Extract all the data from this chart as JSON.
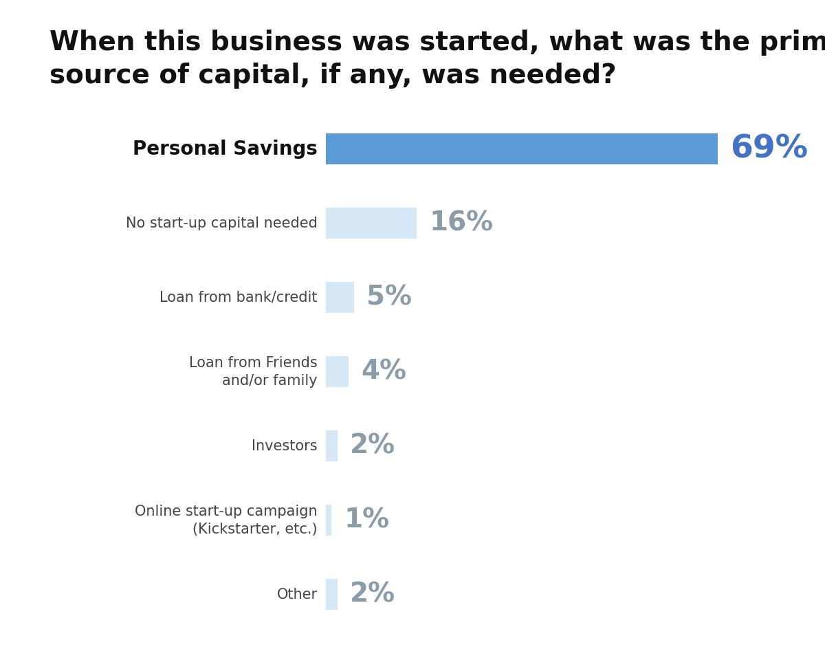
{
  "title_line1": "When this business was started, what was the primary",
  "title_line2": "source of capital, if any, was needed?",
  "categories": [
    "Personal Savings",
    "No start-up capital needed",
    "Loan from bank/credit",
    "Loan from Friends\nand/or family",
    "Investors",
    "Online start-up campaign\n(Kickstarter, etc.)",
    "Other"
  ],
  "values": [
    69,
    16,
    5,
    4,
    2,
    1,
    2
  ],
  "bar_color_primary": "#5B9BD5",
  "bar_color_light": "#D6E8F5",
  "pct_color_primary": "#4472C4",
  "pct_color_light": "#8C9BA8",
  "label_color_primary": "#111111",
  "label_color_secondary": "#444444",
  "background_color": "#FFFFFF",
  "title_fontsize": 28,
  "label_fontsize_primary": 20,
  "label_fontsize_secondary": 15,
  "pct_fontsize_primary": 34,
  "pct_fontsize_secondary": 28
}
